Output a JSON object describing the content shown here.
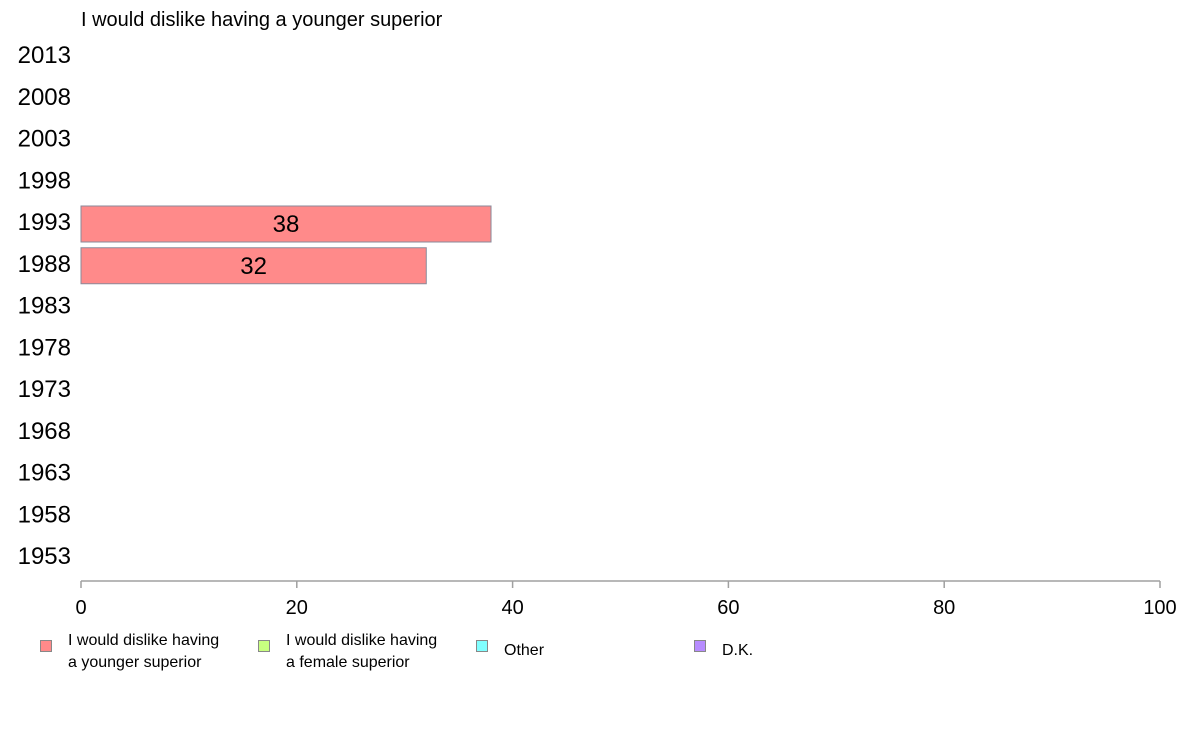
{
  "chart_data": {
    "type": "bar",
    "orientation": "horizontal",
    "title": "I would dislike having a younger superior",
    "categories": [
      "2013",
      "2008",
      "2003",
      "1998",
      "1993",
      "1988",
      "1983",
      "1978",
      "1973",
      "1968",
      "1963",
      "1958",
      "1953"
    ],
    "series": [
      {
        "name": "I would dislike having a younger superior",
        "color": "#ff8a8a",
        "values": [
          null,
          null,
          null,
          null,
          38,
          32,
          null,
          null,
          null,
          null,
          null,
          null,
          null
        ]
      }
    ],
    "xlim": [
      0,
      100
    ],
    "xticks": [
      "0",
      "20",
      "40",
      "60",
      "80",
      "100"
    ],
    "grid": false,
    "legend_position": "bottom",
    "legend": [
      {
        "label": "I would dislike having\na younger superior",
        "color": "#ff8a8a"
      },
      {
        "label": "I would dislike having\na female superior",
        "color": "#c8ff80"
      },
      {
        "label": "Other",
        "color": "#80ffff"
      },
      {
        "label": "D.K.",
        "color": "#b78cff"
      }
    ]
  }
}
